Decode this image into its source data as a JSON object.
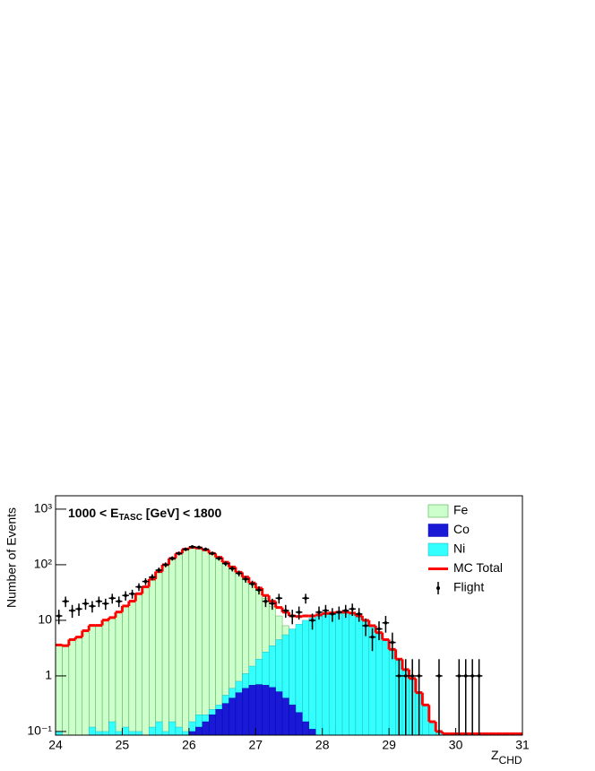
{
  "chart_data": {
    "type": "histogram",
    "annotation": {
      "parts": [
        "1000 < E",
        "TASC",
        " [GeV] < 1800"
      ]
    },
    "xlabel": {
      "text": "Z",
      "sub": "CHD"
    },
    "ylabel": "Number of Events",
    "log_y": true,
    "legend": "top-right",
    "xlim": [
      24,
      31
    ],
    "ylim": [
      0.086,
      1740
    ],
    "xticks": [
      24,
      25,
      26,
      27,
      28,
      29,
      30,
      31
    ],
    "yticks": [
      {
        "value": 0.1,
        "label": "10⁻¹"
      },
      1,
      10,
      {
        "value": 100,
        "label": "10²"
      },
      {
        "value": 1000,
        "label": "10³"
      }
    ],
    "bins": [
      24.0,
      24.1,
      24.2,
      24.3,
      24.4,
      24.5,
      24.6,
      24.7,
      24.8,
      24.9,
      25.0,
      25.1,
      25.2,
      25.3,
      25.4,
      25.5,
      25.6,
      25.7,
      25.8,
      25.9,
      26.0,
      26.1,
      26.2,
      26.3,
      26.4,
      26.5,
      26.6,
      26.7,
      26.8,
      26.9,
      27.0,
      27.1,
      27.2,
      27.3,
      27.4,
      27.5,
      27.6,
      27.7,
      27.8,
      27.9,
      28.0,
      28.1,
      28.2,
      28.3,
      28.4,
      28.5,
      28.6,
      28.7,
      28.8,
      28.9,
      29.0,
      29.1,
      29.2,
      29.3,
      29.4,
      29.5,
      29.6,
      29.7,
      29.8,
      29.9,
      30.0,
      30.1,
      30.2,
      30.3,
      30.4,
      30.5,
      30.6,
      30.7,
      30.8,
      30.9,
      31.0
    ],
    "series": [
      {
        "name": "Fe",
        "style": "fill",
        "color": "#ccffcc",
        "edgecolor": "#339933",
        "values": [
          3.5,
          3.5,
          4.5,
          5,
          6.5,
          8,
          8,
          10,
          11,
          14,
          18,
          22,
          30,
          40,
          55,
          75,
          100,
          130,
          160,
          190,
          205,
          200,
          185,
          160,
          135,
          110,
          90,
          72,
          58,
          45,
          35,
          25,
          18,
          12,
          8,
          5,
          3,
          1.8,
          1,
          0.5,
          0.25,
          0.12,
          0,
          0,
          0,
          0,
          0,
          0,
          0,
          0,
          0,
          0,
          0,
          0,
          0,
          0,
          0,
          0,
          0,
          0,
          0,
          0,
          0,
          0,
          0,
          0,
          0,
          0,
          0,
          0
        ]
      },
      {
        "name": "Co",
        "style": "fill",
        "color": "#1a1ad6",
        "edgecolor": "#0000aa",
        "values": [
          0,
          0,
          0,
          0,
          0,
          0,
          0,
          0,
          0,
          0,
          0,
          0,
          0,
          0,
          0,
          0,
          0,
          0,
          0,
          0,
          0.1,
          0.12,
          0.15,
          0.2,
          0.25,
          0.32,
          0.4,
          0.5,
          0.6,
          0.68,
          0.7,
          0.68,
          0.62,
          0.52,
          0.4,
          0.3,
          0.22,
          0.15,
          0.11,
          0,
          0,
          0,
          0,
          0,
          0,
          0,
          0,
          0,
          0,
          0,
          0,
          0,
          0,
          0,
          0,
          0,
          0,
          0,
          0,
          0,
          0,
          0,
          0,
          0,
          0,
          0,
          0,
          0,
          0,
          0
        ]
      },
      {
        "name": "Ni",
        "style": "fill",
        "color": "#33ffff",
        "edgecolor": "#22aaaa",
        "values": [
          0.1,
          0,
          0,
          0,
          0,
          0.12,
          0.1,
          0.1,
          0.15,
          0.1,
          0.12,
          0.1,
          0.1,
          0,
          0.12,
          0.15,
          0.1,
          0.15,
          0.12,
          0.1,
          0.15,
          0.2,
          0.2,
          0.25,
          0.3,
          0.45,
          0.6,
          0.8,
          1.1,
          1.5,
          2,
          2.7,
          3.5,
          4.5,
          5.5,
          7,
          8.5,
          10,
          11,
          12,
          13,
          13.5,
          14,
          14,
          13.5,
          12,
          10,
          8,
          6,
          4.5,
          3,
          2,
          1.3,
          0.9,
          0.5,
          0.3,
          0.15,
          0.1,
          0,
          0,
          0,
          0,
          0,
          0,
          0,
          0,
          0,
          0,
          0,
          0
        ]
      },
      {
        "name": "MC Total",
        "style": "line",
        "color": "#ff0000",
        "values": [
          3.6,
          3.5,
          4.5,
          5,
          6.5,
          8.1,
          8.1,
          10.1,
          11.2,
          14.1,
          18.1,
          22.1,
          30.1,
          40,
          55.1,
          75.2,
          100,
          130,
          160,
          190,
          205,
          200,
          185,
          160,
          136,
          111,
          91,
          73,
          60,
          47,
          38,
          28,
          22,
          17,
          14,
          12,
          11.7,
          12,
          12,
          12.5,
          13.3,
          13.6,
          14,
          14,
          13.5,
          12,
          10,
          8,
          6,
          4.5,
          3,
          2,
          1.3,
          0.9,
          0.5,
          0.3,
          0.15,
          0.1,
          0,
          0,
          0,
          0,
          0,
          0,
          0,
          0,
          0,
          0,
          0,
          0
        ]
      },
      {
        "name": "Flight",
        "style": "points",
        "color": "#000000",
        "values": [
          12,
          22,
          15,
          16,
          20,
          18,
          22,
          20,
          25,
          22,
          28,
          30,
          40,
          50,
          60,
          80,
          100,
          130,
          160,
          190,
          210,
          205,
          190,
          160,
          130,
          105,
          85,
          70,
          55,
          45,
          35,
          22,
          20,
          25,
          15,
          12,
          14,
          25,
          10,
          14,
          15,
          13,
          14,
          15,
          16,
          13,
          8,
          5,
          7,
          9,
          4,
          1,
          1,
          1,
          1,
          null,
          null,
          1,
          null,
          null,
          1,
          1,
          1,
          1,
          null,
          null,
          null,
          null,
          null,
          null
        ],
        "errors": [
          3.5,
          4.7,
          3.9,
          4,
          4.5,
          4.2,
          4.7,
          4.5,
          5,
          4.7,
          5.3,
          5.5,
          6.3,
          7.1,
          7.7,
          8.9,
          10,
          11.4,
          12.6,
          13.8,
          14.5,
          14.3,
          13.8,
          12.6,
          11.4,
          10.2,
          9.2,
          8.4,
          7.4,
          6.7,
          5.9,
          4.7,
          4.5,
          5,
          3.9,
          3.5,
          3.7,
          5,
          3.2,
          3.7,
          3.9,
          3.6,
          3.7,
          3.9,
          4,
          3.6,
          2.8,
          2.2,
          2.6,
          3,
          2,
          1,
          1,
          1,
          1,
          null,
          null,
          1,
          null,
          null,
          1,
          1,
          1,
          1,
          null,
          null,
          null,
          null,
          null,
          null
        ]
      }
    ]
  }
}
